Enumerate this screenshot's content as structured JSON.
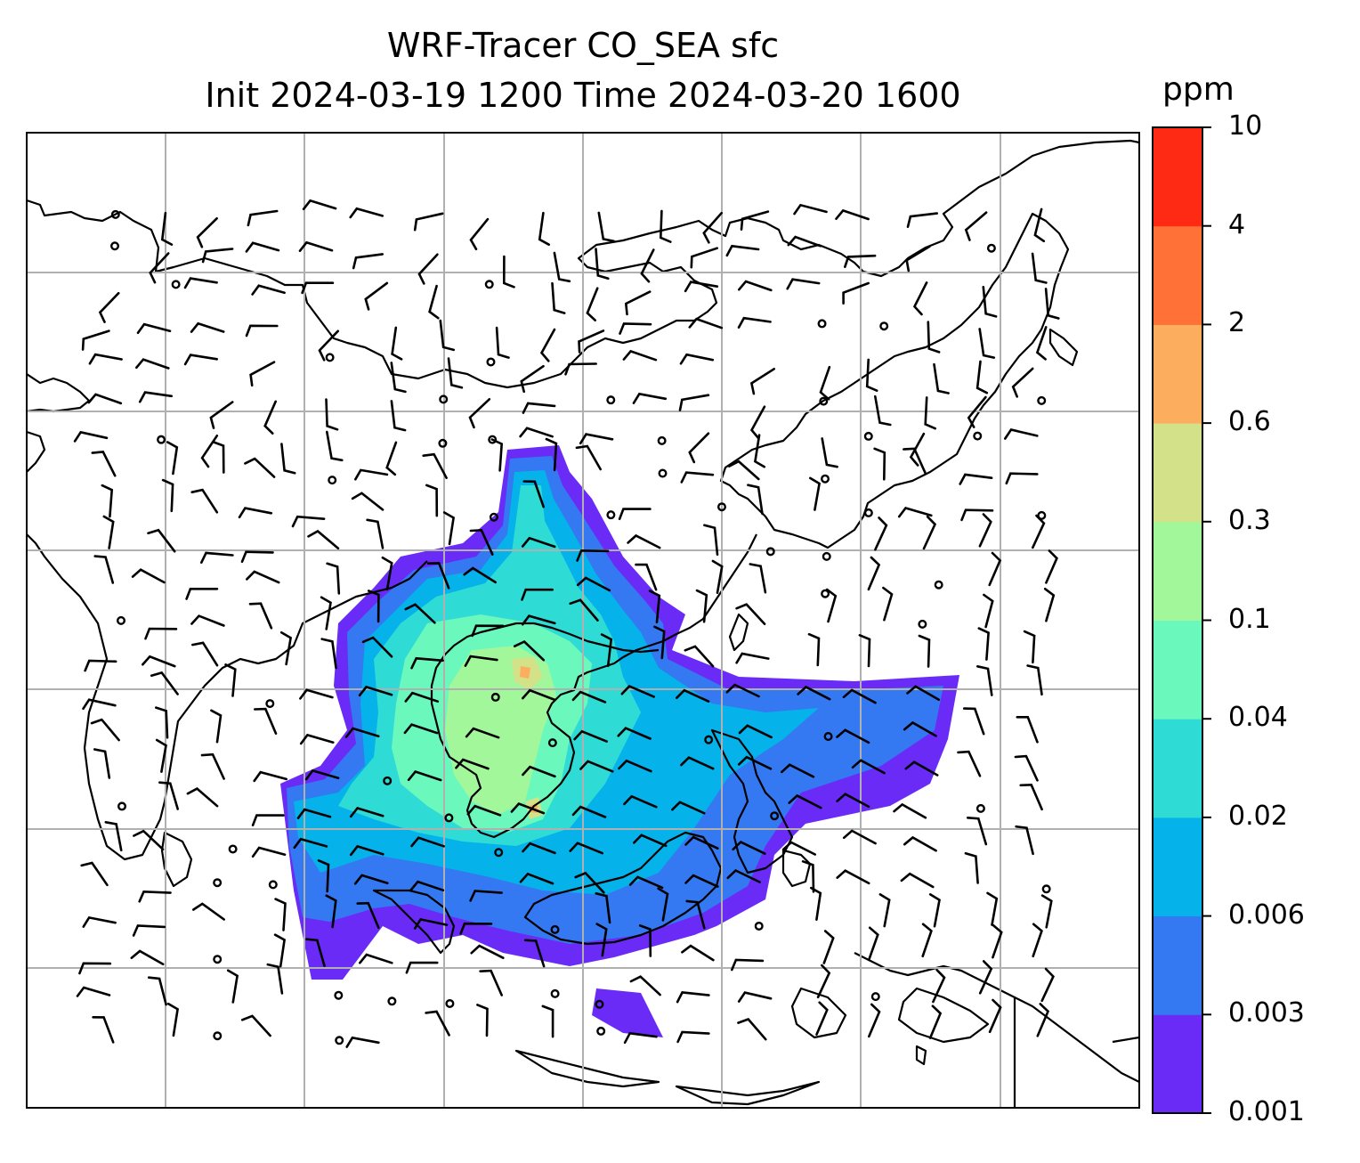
{
  "title": {
    "line1": "WRF-Tracer CO_SEA sfc",
    "line2": "Init 2024-03-19 1200 Time 2024-03-20 1600"
  },
  "colorbar": {
    "unit": "ppm",
    "ticks": [
      "0.001",
      "0.003",
      "0.006",
      "0.02",
      "0.04",
      "0.1",
      "0.3",
      "0.6",
      "2",
      "4",
      "10"
    ],
    "colors": [
      "#6a2bf7",
      "#3478f2",
      "#05b2ea",
      "#2fdbd5",
      "#6bf8bd",
      "#a2f79b",
      "#d3e188",
      "#fcae5e",
      "#ff7137",
      "#ff2a14"
    ]
  },
  "chart_data": {
    "type": "map",
    "variable": "CO_SEA",
    "level": "sfc",
    "init_time": "2024-03-19 1200",
    "valid_time": "2024-03-20 1600",
    "grid": true,
    "overlay": "wind barbs",
    "colorbar_levels": [
      0.001,
      0.003,
      0.006,
      0.02,
      0.04,
      0.1,
      0.3,
      0.6,
      2,
      4,
      10
    ]
  }
}
